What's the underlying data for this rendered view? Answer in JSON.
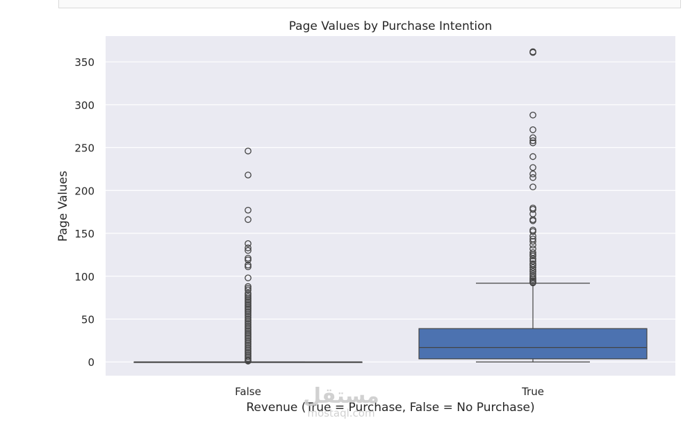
{
  "chart_data": {
    "type": "box",
    "title": "Page Values by Purchase Intention",
    "xlabel": "Revenue (True = Purchase, False = No Purchase)",
    "ylabel": "Page Values",
    "ylim": [
      -16,
      380
    ],
    "yticks": [
      0,
      50,
      100,
      150,
      200,
      250,
      300,
      350
    ],
    "grid": true,
    "categories": [
      "False",
      "True"
    ],
    "boxes": [
      {
        "name": "False",
        "q1": 0,
        "median": 0,
        "q3": 0,
        "whisker_low": 0,
        "whisker_high": 0,
        "color": "#4c72b0",
        "outliers": [
          246,
          218,
          177,
          166,
          138,
          133,
          130,
          121,
          119,
          113,
          111,
          98,
          88,
          86,
          84,
          80,
          78,
          76,
          74,
          72,
          70,
          68,
          66,
          64,
          62,
          60,
          58,
          56,
          54,
          52,
          50,
          48,
          46,
          44,
          42,
          40,
          38,
          36,
          34,
          32,
          30,
          28,
          26,
          24,
          22,
          20,
          18,
          16,
          14,
          12,
          10,
          8,
          6,
          4,
          2,
          1
        ]
      },
      {
        "name": "True",
        "q1": 3.6,
        "median": 16.8,
        "q3": 38.9,
        "whisker_low": 0,
        "whisker_high": 91.8,
        "color": "#4c72b0",
        "outliers": [
          361.8,
          360.9,
          287.9,
          270.8,
          261.5,
          258,
          255.5,
          239.5,
          226.7,
          219.2,
          215,
          204.1,
          179.5,
          177.9,
          172.6,
          166,
          164.7,
          153.8,
          152.1,
          146.8,
          143.4,
          140.7,
          136.4,
          131.9,
          127.5,
          125.3,
          123.6,
          120.2,
          117.6,
          114.5,
          112.8,
          110.1,
          107.5,
          105.3,
          102.6,
          100.2,
          98.1,
          96.4,
          94.7,
          93.1,
          92.3
        ]
      }
    ]
  },
  "watermark": {
    "logo": "مستقل",
    "domain": "mostaql.com"
  }
}
